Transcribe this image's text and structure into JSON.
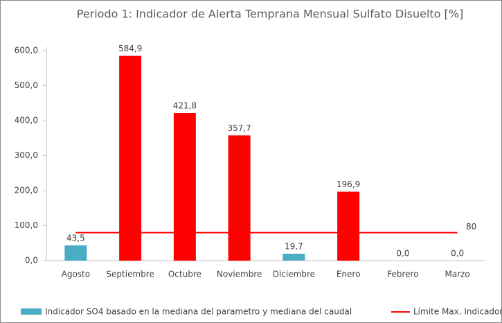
{
  "chart_data": {
    "type": "bar",
    "title": "Periodo 1: Indicador de Alerta Temprana Mensual Sulfato Disuelto [%]",
    "categories": [
      "Agosto",
      "Septiembre",
      "Octubre",
      "Noviembre",
      "Diciembre",
      "Enero",
      "Febrero",
      "Marzo"
    ],
    "series": [
      {
        "name": "Indicador SO4 basado en la mediana del parametro y mediana del caudal",
        "color": "#4bacc6",
        "values": [
          43.5,
          584.9,
          421.8,
          357.7,
          19.7,
          196.9,
          0,
          0
        ],
        "value_labels": [
          "43,5",
          "584,9",
          "421,8",
          "357,7",
          "19,7",
          "196,9",
          "0,0",
          "0,0"
        ],
        "colors": [
          "#4bacc6",
          "#ff0000",
          "#ff0000",
          "#ff0000",
          "#4bacc6",
          "#ff0000",
          "#ff0000",
          "#ff0000"
        ]
      }
    ],
    "reference_line": {
      "name": "Límite Max. Indicador",
      "value": 80,
      "color": "#ff0000"
    },
    "ylim": [
      0,
      600
    ],
    "yticks": [
      {
        "value": 0,
        "label": "0,0"
      },
      {
        "value": 100,
        "label": "100,0"
      },
      {
        "value": 200,
        "label": "200,0"
      },
      {
        "value": 300,
        "label": "300,0"
      },
      {
        "value": 400,
        "label": "400,0"
      },
      {
        "value": 500,
        "label": "500,0"
      },
      {
        "value": 600,
        "label": "600,0"
      }
    ]
  }
}
